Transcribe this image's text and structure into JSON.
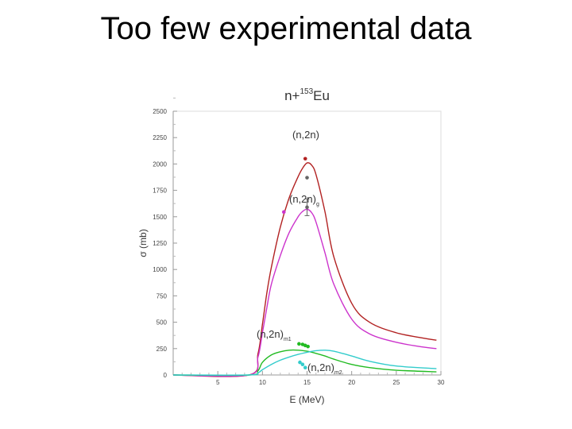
{
  "slide": {
    "title": "Too few experimental data"
  },
  "chart_data": {
    "type": "line",
    "title_prefix": "n+",
    "title_sup": "153",
    "title_suffix": "Eu",
    "xlabel": "E (MeV)",
    "ylabel": "σ (mb)",
    "xlim": [
      0,
      30
    ],
    "ylim": [
      0,
      2500
    ],
    "xticks": [
      5,
      10,
      15,
      20,
      25,
      30
    ],
    "yticks": [
      0,
      250,
      500,
      750,
      1000,
      1250,
      1500,
      1750,
      2000,
      2250,
      2500
    ],
    "grid": false,
    "series": [
      {
        "label_main": "(n,2n)",
        "label_sub": "",
        "color": "#b22222",
        "x": [
          0,
          8.5,
          9.5,
          10,
          10.5,
          11,
          12,
          13,
          14,
          14.5,
          15,
          15.5,
          16,
          17,
          18,
          20,
          22,
          25,
          28,
          29.5
        ],
        "y": [
          0,
          0,
          200,
          480,
          780,
          1020,
          1400,
          1680,
          1880,
          1960,
          2010,
          1990,
          1900,
          1550,
          1120,
          680,
          500,
          400,
          350,
          330
        ]
      },
      {
        "label_main": "(n,2n)",
        "label_sub": "g",
        "color": "#cc33cc",
        "x": [
          0,
          8.5,
          9.5,
          10,
          10.5,
          11,
          12,
          13,
          14,
          14.5,
          15,
          15.5,
          16,
          17,
          18,
          20,
          22,
          25,
          28,
          29.5
        ],
        "y": [
          0,
          0,
          170,
          400,
          640,
          860,
          1130,
          1350,
          1500,
          1550,
          1570,
          1540,
          1450,
          1160,
          860,
          530,
          390,
          310,
          265,
          250
        ]
      },
      {
        "label_main": "(n,2n)",
        "label_sub": "m1",
        "color": "#22bb22",
        "x": [
          0,
          8.5,
          9.5,
          10,
          11,
          12,
          13,
          14,
          15,
          16,
          17,
          18,
          20,
          22,
          25,
          29.5
        ],
        "y": [
          0,
          0,
          40,
          120,
          190,
          220,
          235,
          235,
          225,
          205,
          180,
          150,
          100,
          70,
          45,
          30
        ]
      },
      {
        "label_main": "(n,2n)",
        "label_sub": "m2",
        "color": "#33cccc",
        "x": [
          0,
          8.5,
          9.5,
          10,
          11,
          12,
          13,
          14,
          15,
          16,
          17,
          18,
          20,
          22,
          25,
          29.5
        ],
        "y": [
          0,
          0,
          20,
          50,
          100,
          140,
          170,
          195,
          215,
          230,
          235,
          225,
          180,
          130,
          85,
          60
        ]
      }
    ],
    "experimental": [
      {
        "x": 14.8,
        "y": 2050,
        "yerr": 0,
        "color": "#b22222"
      },
      {
        "x": 15.0,
        "y": 1870,
        "yerr": 0,
        "color": "#666666"
      },
      {
        "x": 12.4,
        "y": 1545,
        "yerr": 0,
        "color": "#cc33cc"
      },
      {
        "x": 15.0,
        "y": 1590,
        "yerr": 80,
        "color": "#666666"
      },
      {
        "x": 14.1,
        "y": 295,
        "yerr": 0,
        "color": "#22bb22"
      },
      {
        "x": 14.5,
        "y": 290,
        "yerr": 0,
        "color": "#22bb22"
      },
      {
        "x": 14.8,
        "y": 280,
        "yerr": 0,
        "color": "#22bb22"
      },
      {
        "x": 15.1,
        "y": 270,
        "yerr": 0,
        "color": "#22bb22"
      },
      {
        "x": 14.2,
        "y": 120,
        "yerr": 0,
        "color": "#33cccc"
      },
      {
        "x": 14.5,
        "y": 100,
        "yerr": 0,
        "color": "#33cccc"
      },
      {
        "x": 14.8,
        "y": 70,
        "yerr": 0,
        "color": "#33cccc"
      }
    ]
  }
}
